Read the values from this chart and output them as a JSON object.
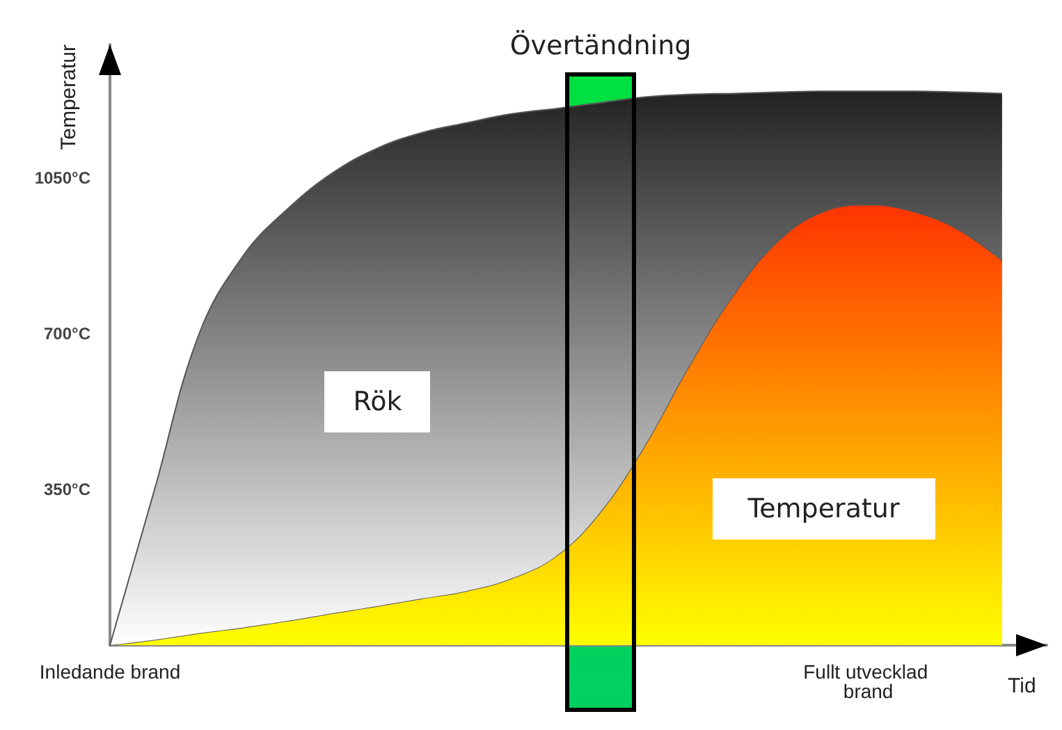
{
  "chart_data": {
    "type": "area",
    "ylabel": "Temperatur",
    "xlabel": "Tid",
    "categories": [
      "Inledande brand",
      null,
      null,
      null,
      null,
      null,
      null,
      null,
      null,
      null,
      null,
      null,
      null,
      null,
      null,
      null,
      null,
      "Fullt utvecklad brand",
      null,
      null,
      null,
      null
    ],
    "ylim": [
      0,
      1350
    ],
    "yticks": [
      {
        "value": 350,
        "label": "350°C"
      },
      {
        "value": 700,
        "label": "700°C"
      },
      {
        "value": 1050,
        "label": "1050°C"
      }
    ],
    "series": [
      {
        "name": "Temperatur",
        "color": "#ff3300",
        "values": [
          0,
          12,
          27,
          40,
          55,
          72,
          88,
          105,
          122,
          150,
          200,
          300,
          450,
          630,
          790,
          910,
          975,
          990,
          975,
          935,
          865,
          null
        ]
      },
      {
        "name": "Rök",
        "color": "#222222",
        "values": [
          0,
          338,
          673,
          837,
          927,
          990,
          1029,
          1047,
          1052,
          1044,
          1006,
          919,
          782,
          608,
          450,
          333,
          270,
          255,
          270,
          308,
          375,
          null
        ]
      }
    ],
    "stacked": true,
    "annotations": [
      "Övertändning"
    ],
    "grid": false,
    "legend": false,
    "marker": "none"
  }
}
